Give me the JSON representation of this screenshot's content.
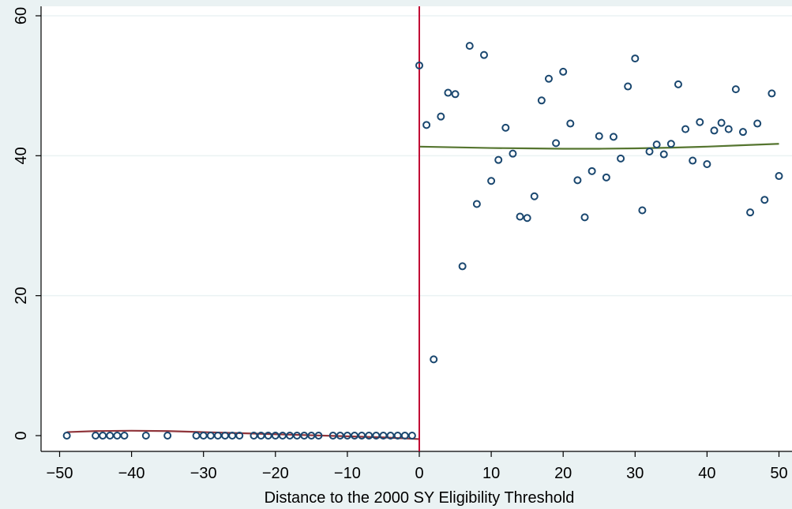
{
  "chart_data": {
    "type": "scatter",
    "title": "",
    "xlabel": "Distance to the 2000 SY Eligibility Threshold",
    "ylabel": "",
    "xlim": [
      -50,
      50
    ],
    "ylim": [
      0,
      60
    ],
    "xticks": [
      -50,
      -40,
      -30,
      -20,
      -10,
      0,
      10,
      20,
      30,
      40,
      50
    ],
    "yticks": [
      0,
      20,
      40,
      60
    ],
    "xtick_labels": [
      "−50",
      "−40",
      "−30",
      "−20",
      "−10",
      "0",
      "10",
      "20",
      "30",
      "40",
      "50"
    ],
    "ytick_labels": [
      "0",
      "20",
      "40",
      "60"
    ],
    "grid": "horizontal",
    "legend": "none",
    "threshold_x": 0,
    "colors": {
      "background": "#eaf2f3",
      "plot_area": "#ffffff",
      "grid": "#eaf2f3",
      "marker": "#1a476f",
      "fit_left": "#90353b",
      "fit_right": "#55752f",
      "threshold": "#c10534"
    },
    "series": [
      {
        "kind": "scatter",
        "x": [
          -49,
          -45,
          -44,
          -43,
          -42,
          -41,
          -38,
          -35,
          -31,
          -30,
          -29,
          -28,
          -27,
          -26,
          -25,
          -23,
          -22,
          -21,
          -20,
          -19,
          -18,
          -17,
          -16,
          -15,
          -14,
          -12,
          -11,
          -10,
          -9,
          -8,
          -7,
          -6,
          -5,
          -4,
          -3,
          -2,
          -1
        ],
        "y": [
          0,
          0,
          0,
          0,
          0,
          0,
          0,
          0,
          0,
          0,
          0,
          0,
          0,
          0,
          0,
          0,
          0,
          0,
          0,
          0,
          0,
          0,
          0,
          0,
          0,
          0,
          0,
          0,
          0,
          0,
          0,
          0,
          0,
          0,
          0,
          0,
          0
        ]
      },
      {
        "kind": "scatter",
        "x": [
          0,
          1,
          2,
          3,
          4,
          5,
          6,
          7,
          8,
          9,
          10,
          11,
          12,
          13,
          14,
          15,
          16,
          17,
          18,
          19,
          20,
          21,
          22,
          23,
          24,
          25,
          26,
          27,
          28,
          29,
          30,
          31,
          32,
          33,
          34,
          35,
          36,
          37,
          38,
          39,
          40,
          41,
          42,
          43,
          44,
          45,
          46,
          47,
          48,
          49,
          50
        ],
        "y": [
          52.9,
          44.4,
          10.9,
          45.6,
          49.0,
          48.8,
          24.2,
          55.7,
          33.1,
          54.4,
          36.4,
          39.4,
          44.0,
          40.3,
          31.3,
          31.1,
          34.2,
          47.9,
          51.0,
          41.8,
          52.0,
          44.6,
          36.5,
          31.2,
          37.8,
          42.8,
          36.9,
          42.7,
          39.6,
          49.9,
          53.9,
          32.2,
          40.6,
          41.6,
          40.2,
          41.7,
          50.2,
          43.8,
          39.3,
          44.8,
          38.8,
          43.6,
          44.7,
          43.8,
          49.5,
          43.4,
          31.9,
          44.6,
          33.7,
          48.9,
          37.1
        ]
      },
      {
        "kind": "line",
        "x": [
          -49,
          -45,
          -40,
          -35,
          -30,
          -25,
          -20,
          -15,
          -10,
          -5,
          0
        ],
        "y": [
          0.5,
          0.65,
          0.7,
          0.65,
          0.5,
          0.35,
          0.2,
          0.05,
          -0.1,
          -0.25,
          -0.5
        ]
      },
      {
        "kind": "line",
        "x": [
          0,
          5,
          10,
          15,
          20,
          25,
          30,
          35,
          40,
          45,
          50
        ],
        "y": [
          41.3,
          41.2,
          41.1,
          41.05,
          41.0,
          41.0,
          41.05,
          41.15,
          41.3,
          41.5,
          41.7
        ]
      }
    ]
  }
}
